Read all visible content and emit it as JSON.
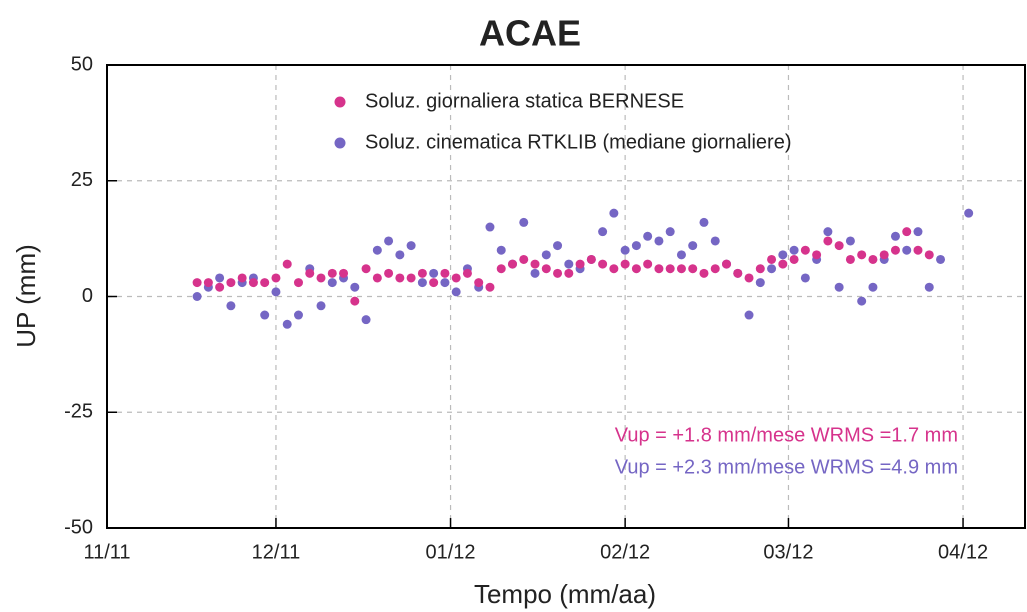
{
  "chart_data": {
    "type": "scatter",
    "title": "ACAE",
    "x_label": "Tempo (mm/aa)",
    "y_label": "UP (mm)",
    "xlim": [
      0,
      163
    ],
    "ylim": [
      -50,
      50
    ],
    "xticks": [
      {
        "value": 0,
        "label": "11/11"
      },
      {
        "value": 30,
        "label": "12/11"
      },
      {
        "value": 61,
        "label": "01/12"
      },
      {
        "value": 92,
        "label": "02/12"
      },
      {
        "value": 121,
        "label": "03/12"
      },
      {
        "value": 152,
        "label": "04/12"
      }
    ],
    "yticks": [
      -50,
      -25,
      0,
      25,
      50
    ],
    "grid": true,
    "series": [
      {
        "name": "Soluz. giornaliera statica BERNESE",
        "color": "#d6338c",
        "x": [
          16,
          18,
          20,
          22,
          24,
          26,
          28,
          30,
          32,
          34,
          36,
          38,
          40,
          42,
          44,
          46,
          48,
          50,
          52,
          54,
          56,
          58,
          60,
          62,
          64,
          66,
          68,
          70,
          72,
          74,
          76,
          78,
          80,
          82,
          84,
          86,
          88,
          90,
          92,
          94,
          96,
          98,
          100,
          102,
          104,
          106,
          108,
          110,
          112,
          114,
          116,
          118,
          120,
          122,
          124,
          126,
          128,
          130,
          132,
          134,
          136,
          138,
          140,
          142,
          144,
          146
        ],
        "values": [
          3,
          3,
          2,
          3,
          4,
          3,
          3,
          4,
          7,
          3,
          5,
          4,
          5,
          5,
          -1,
          6,
          4,
          5,
          4,
          4,
          5,
          3,
          5,
          4,
          5,
          3,
          2,
          6,
          7,
          8,
          7,
          6,
          5,
          5,
          7,
          8,
          7,
          6,
          7,
          6,
          7,
          6,
          6,
          6,
          6,
          5,
          6,
          7,
          5,
          4,
          6,
          8,
          7,
          8,
          10,
          9,
          12,
          11,
          8,
          9,
          8,
          9,
          10,
          14,
          10,
          9
        ]
      },
      {
        "name": "Soluz. cinematica RTKLIB (mediane giornaliere)",
        "color": "#7566c4",
        "x": [
          16,
          18,
          20,
          22,
          24,
          26,
          28,
          30,
          32,
          34,
          36,
          38,
          40,
          42,
          44,
          46,
          48,
          50,
          52,
          54,
          56,
          58,
          60,
          62,
          64,
          66,
          68,
          70,
          72,
          74,
          76,
          78,
          80,
          82,
          84,
          86,
          88,
          90,
          92,
          94,
          96,
          98,
          100,
          102,
          104,
          106,
          108,
          110,
          112,
          114,
          116,
          118,
          120,
          122,
          124,
          126,
          128,
          130,
          132,
          134,
          136,
          138,
          140,
          142,
          144,
          146,
          148,
          153
        ],
        "values": [
          0,
          2,
          4,
          -2,
          3,
          4,
          -4,
          1,
          -6,
          -4,
          6,
          -2,
          3,
          4,
          2,
          -5,
          10,
          12,
          9,
          11,
          3,
          5,
          3,
          1,
          6,
          2,
          15,
          10,
          7,
          16,
          5,
          9,
          11,
          7,
          6,
          8,
          14,
          18,
          10,
          11,
          13,
          12,
          14,
          9,
          11,
          16,
          12,
          7,
          5,
          -4,
          3,
          6,
          9,
          10,
          4,
          8,
          14,
          2,
          12,
          -1,
          2,
          8,
          13,
          10,
          14,
          2,
          8,
          18
        ]
      }
    ],
    "annotations": [
      {
        "text": "Vup = +1.8 mm/mese WRMS =1.7 mm",
        "color": "#d6338c"
      },
      {
        "text": "Vup = +2.3 mm/mese WRMS =4.9 mm",
        "color": "#7566c4"
      }
    ]
  }
}
